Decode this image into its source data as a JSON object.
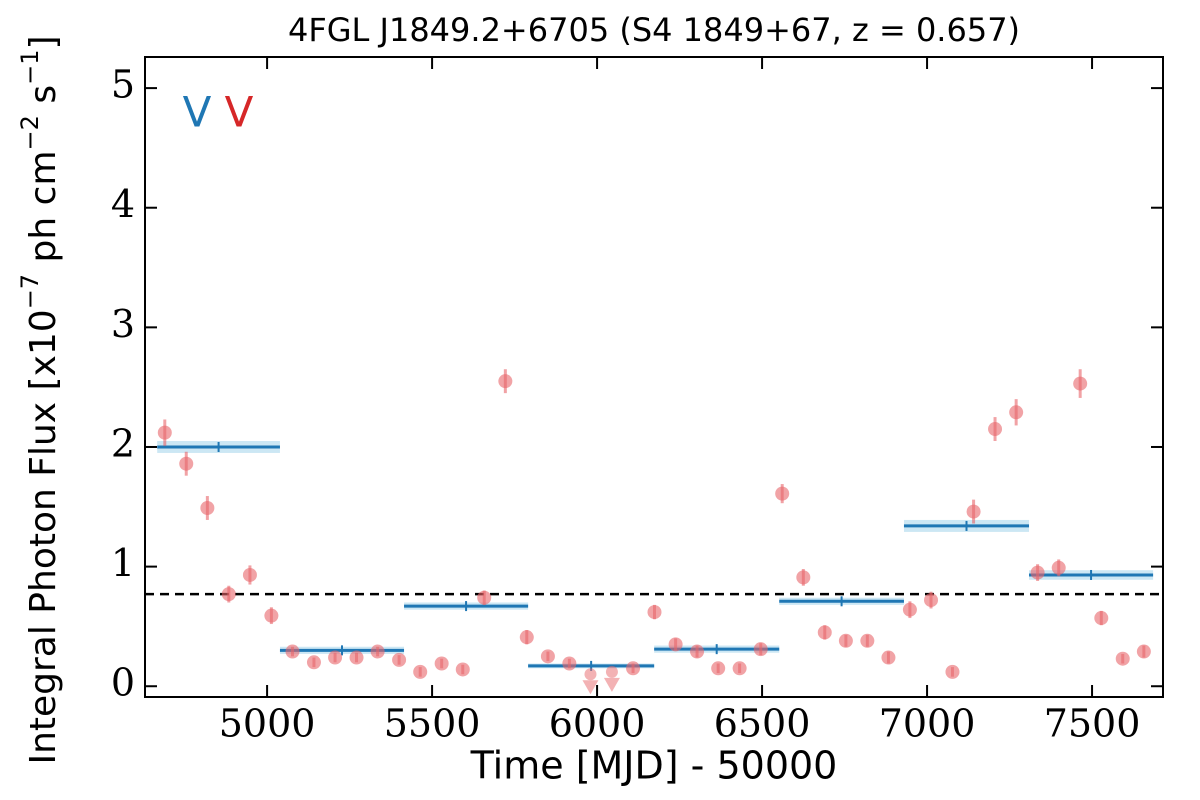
{
  "chart_data": {
    "type": "scatter",
    "title": "4FGL J1849.2+6705 (S4 1849+67, z = 0.657)",
    "xlabel": "Time [MJD] - 50000",
    "ylabel": [
      "Integral Photon Flux [x10",
      "−7",
      " ph cm",
      "−2",
      " s",
      "−1",
      "]"
    ],
    "xlim": [
      4630,
      7715
    ],
    "ylim": [
      -0.09,
      5.26
    ],
    "xticks": [
      5000,
      5500,
      6000,
      6500,
      7000,
      7500
    ],
    "yticks": [
      0,
      1,
      2,
      3,
      4,
      5
    ],
    "x": [
      4690,
      4755,
      4819,
      4884,
      4948,
      5013,
      5077,
      5142,
      5206,
      5271,
      5335,
      5400,
      5464,
      5529,
      5593,
      5658,
      5722,
      5787,
      5851,
      5916,
      6109,
      6174,
      6238,
      6303,
      6367,
      6432,
      6496,
      6561,
      6625,
      6690,
      6754,
      6819,
      6883,
      6948,
      7012,
      7077,
      7141,
      7206,
      7270,
      7335,
      7399,
      7464,
      7528,
      7593,
      7657
    ],
    "values": [
      2.12,
      1.86,
      1.49,
      0.77,
      0.93,
      0.59,
      0.29,
      0.2,
      0.24,
      0.24,
      0.29,
      0.22,
      0.12,
      0.19,
      0.14,
      0.74,
      2.55,
      0.41,
      0.25,
      0.19,
      0.15,
      0.62,
      0.35,
      0.29,
      0.15,
      0.15,
      0.31,
      1.61,
      0.91,
      0.45,
      0.38,
      0.38,
      0.24,
      0.64,
      0.72,
      0.12,
      1.46,
      2.15,
      2.29,
      0.95,
      0.99,
      2.53,
      0.57,
      0.23,
      0.29
    ],
    "errors": [
      0.11,
      0.1,
      0.1,
      0.07,
      0.08,
      0.07,
      0.04,
      0.04,
      0.04,
      0.04,
      0.04,
      0.04,
      0.04,
      0.04,
      0.04,
      0.06,
      0.1,
      0.06,
      0.04,
      0.04,
      0.04,
      0.06,
      0.05,
      0.05,
      0.04,
      0.04,
      0.05,
      0.08,
      0.07,
      0.06,
      0.05,
      0.05,
      0.05,
      0.07,
      0.07,
      0.04,
      0.1,
      0.1,
      0.11,
      0.07,
      0.07,
      0.12,
      0.06,
      0.04,
      0.05
    ],
    "color": "#e8656a",
    "upper_limits": {
      "x": [
        5980,
        6045
      ],
      "values": [
        0.1,
        0.12
      ]
    },
    "blocks": {
      "color": "#1f77b4",
      "x_start": [
        4667,
        5039,
        5415,
        5791,
        6173,
        6552,
        6930,
        7309
      ],
      "x_end": [
        5039,
        5415,
        5791,
        6173,
        6552,
        6930,
        7309,
        7685
      ],
      "values": [
        2.0,
        0.3,
        0.67,
        0.17,
        0.31,
        0.71,
        1.34,
        0.93
      ],
      "errors": [
        0.05,
        0.03,
        0.03,
        0.02,
        0.03,
        0.03,
        0.05,
        0.04
      ]
    },
    "mean": 0.77,
    "annotations": [
      {
        "text": "V",
        "color": "#1f77b4"
      },
      {
        "text": "V",
        "color": "#d62728"
      }
    ]
  }
}
